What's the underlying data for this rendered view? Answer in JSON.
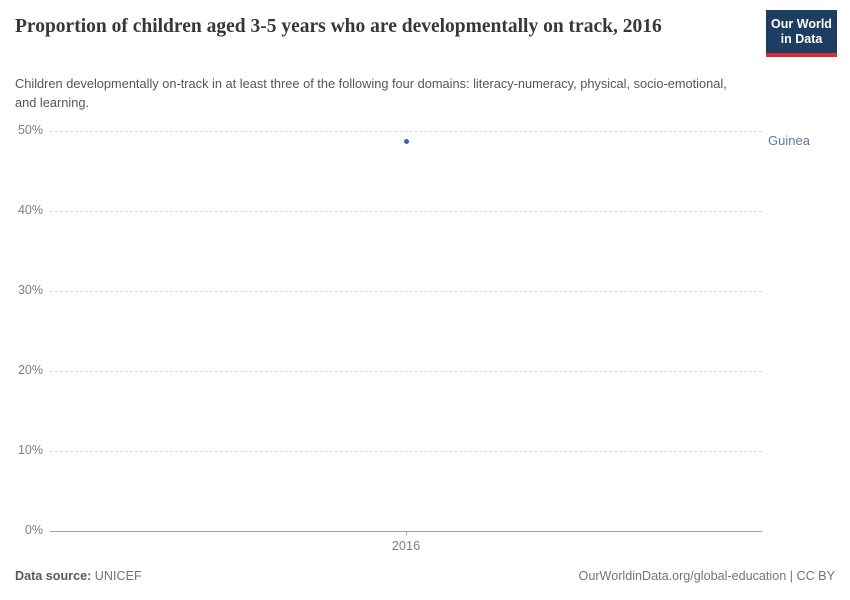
{
  "header": {
    "title": "Proportion of children aged 3-5 years who are developmentally on track, 2016",
    "subtitle": "Children developmentally on-track in at least three of the following four domains: literacy-numeracy, physical, socio-emotional, and learning.",
    "logo": {
      "line1": "Our World",
      "line2": "in Data",
      "bg_color": "#1d3d63",
      "stripe_color": "#d82c3e"
    }
  },
  "chart_data": {
    "type": "scatter",
    "title": "Proportion of children aged 3-5 years who are developmentally on track, 2016",
    "xlabel": "",
    "ylabel": "",
    "x": [
      2016
    ],
    "xticklabels": [
      "2016"
    ],
    "series": [
      {
        "name": "Guinea",
        "values": [
          48.7
        ],
        "color": "#3d66a8",
        "label_color": "#5b7ba8"
      }
    ],
    "yticks": [
      0,
      10,
      20,
      30,
      40,
      50
    ],
    "ytick_suffix": "%",
    "ylim": [
      0,
      50
    ],
    "grid": true,
    "grid_style": "dashed",
    "legend_position": "right-of-point"
  },
  "footer": {
    "source_label": "Data source:",
    "source_value": " UNICEF",
    "credit": "OurWorldinData.org/global-education | CC BY"
  }
}
